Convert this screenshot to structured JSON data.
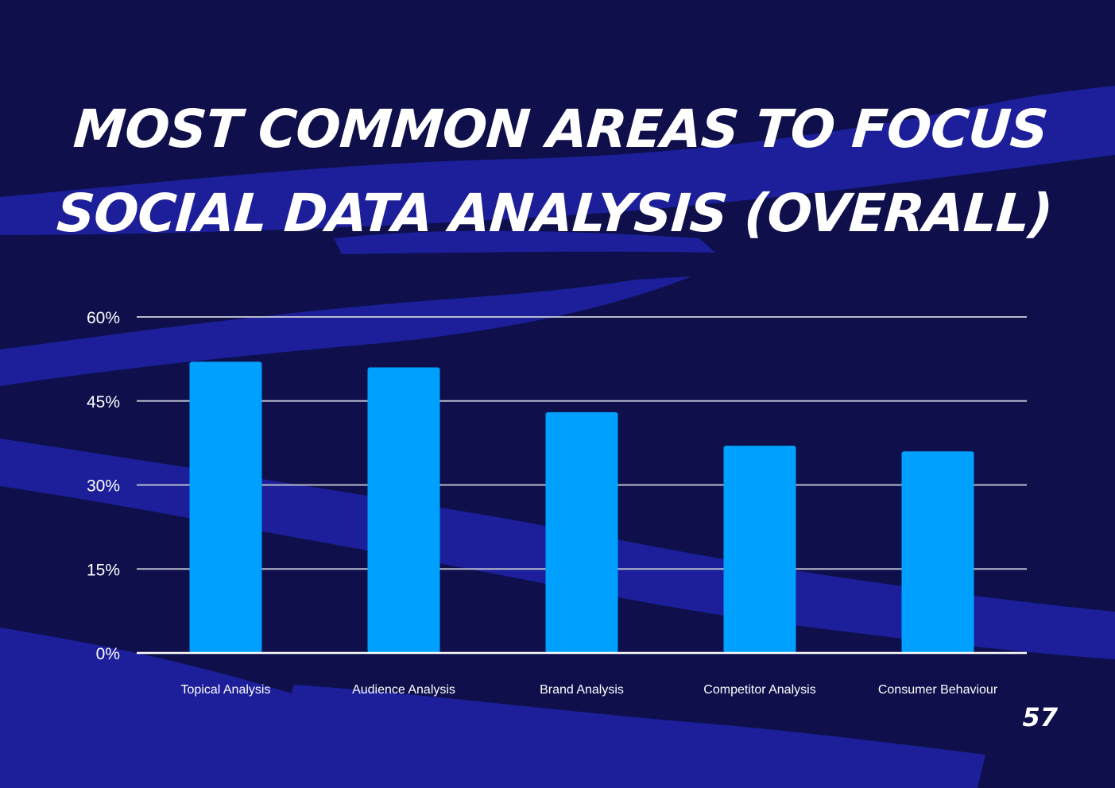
{
  "title": {
    "line1": "MOST COMMON AREAS TO FOCUS",
    "line2": "SOCIAL DATA ANALYSIS (OVERALL)"
  },
  "page_number": "57",
  "colors": {
    "background": "#0e0f4b",
    "brush": "#1c1f99",
    "bar": "#00a0ff",
    "grid": "#b9bccc",
    "text": "#ffffff"
  },
  "chart_data": {
    "type": "bar",
    "categories": [
      "Topical Analysis",
      "Audience Analysis",
      "Brand Analysis",
      "Competitor Analysis",
      "Consumer Behaviour"
    ],
    "values": [
      52,
      51,
      43,
      37,
      36
    ],
    "value_unit": "%",
    "ylim": [
      0,
      60
    ],
    "yticks": [
      "0%",
      "15%",
      "30%",
      "45%",
      "60%"
    ],
    "grid": true,
    "legend": "none"
  }
}
